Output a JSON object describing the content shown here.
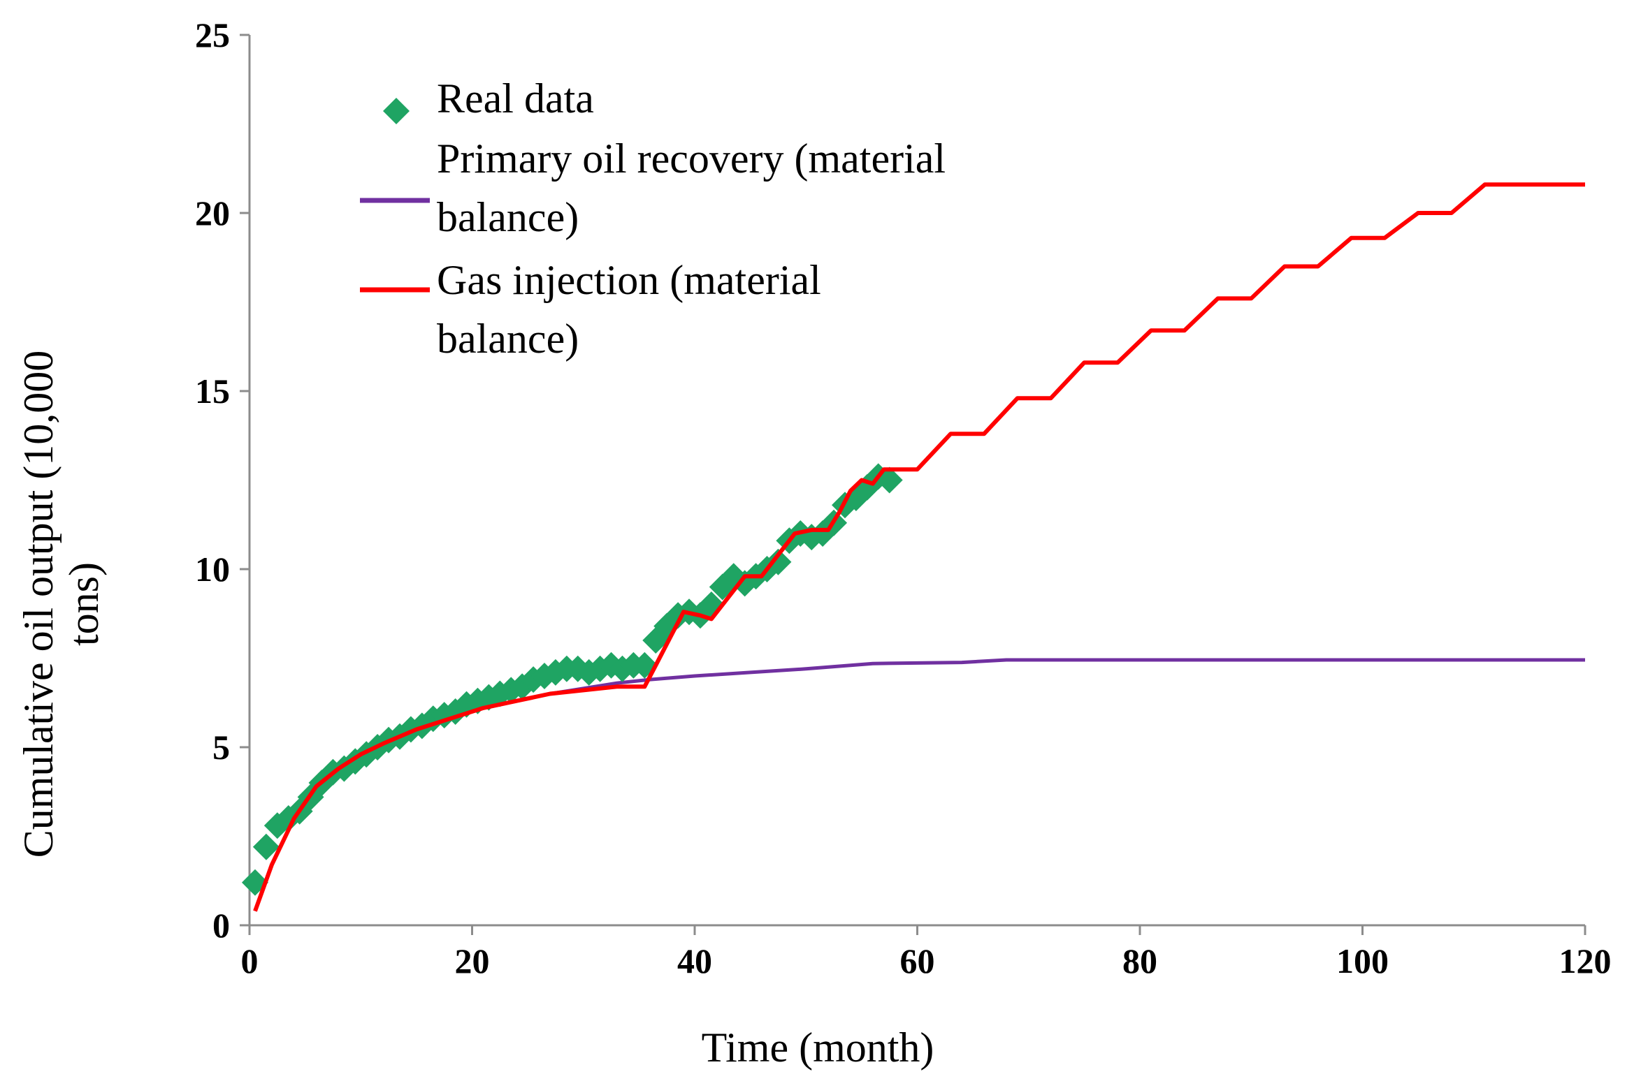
{
  "chart_data": {
    "type": "line",
    "title": "",
    "xlabel": "Time (month)",
    "ylabel_lines": [
      "Cumulative oil output (10,000",
      "tons)"
    ],
    "xlim": [
      0,
      120
    ],
    "ylim": [
      0,
      25
    ],
    "xticks": [
      0,
      20,
      40,
      60,
      80,
      100,
      120
    ],
    "yticks": [
      0,
      5,
      10,
      15,
      20,
      25
    ],
    "grid": false,
    "legend_position": "top-left",
    "colors": {
      "real": "#1fa463",
      "primary": "#7030a0",
      "gas": "#ff0000",
      "axis": "#8c8c8c"
    },
    "series": [
      {
        "name": "Real data",
        "legend_lines": [
          "Real data"
        ],
        "kind": "scatter",
        "marker": "diamond",
        "x": [
          0.5,
          1.5,
          2.5,
          3.5,
          4.5,
          5.5,
          6.5,
          7.5,
          8.5,
          9.5,
          10.5,
          11.5,
          12.5,
          13.5,
          14.5,
          15.5,
          16.5,
          17.5,
          18.5,
          19.5,
          20.5,
          21.5,
          22.5,
          23.5,
          24.5,
          25.5,
          26.5,
          27.5,
          28.5,
          29.5,
          30.5,
          31.5,
          32.5,
          33.5,
          34.5,
          35.5,
          36.5,
          37.5,
          38.5,
          39.5,
          40.5,
          41.5,
          42.5,
          43.5,
          44.5,
          45.5,
          46.5,
          47.5,
          48.5,
          49.5,
          50.5,
          51.5,
          52.5,
          53.5,
          54.5,
          55.5,
          56.5,
          57.5
        ],
        "y": [
          1.2,
          2.2,
          2.8,
          3.0,
          3.2,
          3.6,
          4.0,
          4.3,
          4.4,
          4.6,
          4.8,
          5.0,
          5.2,
          5.3,
          5.5,
          5.6,
          5.8,
          5.9,
          6.0,
          6.2,
          6.3,
          6.4,
          6.5,
          6.6,
          6.7,
          6.9,
          7.0,
          7.1,
          7.2,
          7.2,
          7.1,
          7.2,
          7.3,
          7.2,
          7.3,
          7.3,
          8.0,
          8.4,
          8.7,
          8.8,
          8.7,
          9.0,
          9.5,
          9.8,
          9.6,
          9.8,
          10.0,
          10.2,
          10.8,
          11.0,
          10.9,
          11.0,
          11.3,
          11.8,
          12.0,
          12.3,
          12.6,
          12.5
        ]
      },
      {
        "name": "Primary oil recovery (material balance)",
        "legend_lines": [
          "Primary oil recovery (material",
          "balance)"
        ],
        "kind": "line",
        "x": [
          0.5,
          2,
          4,
          6,
          8,
          10,
          12,
          15,
          18,
          21,
          24,
          27,
          30,
          33,
          36,
          40,
          45,
          50,
          56,
          64,
          68,
          80,
          100,
          120
        ],
        "y": [
          0.4,
          1.7,
          3.0,
          3.9,
          4.4,
          4.8,
          5.1,
          5.5,
          5.8,
          6.1,
          6.3,
          6.5,
          6.65,
          6.8,
          6.9,
          7.0,
          7.1,
          7.2,
          7.35,
          7.38,
          7.45,
          7.45,
          7.45,
          7.45
        ]
      },
      {
        "name": "Gas injection (material balance)",
        "legend_lines": [
          "Gas injection (material",
          "balance)"
        ],
        "kind": "line",
        "x": [
          0.5,
          2,
          4,
          6,
          8,
          10,
          12,
          15,
          18,
          21,
          24,
          27,
          30,
          33,
          35.5,
          36.5,
          38,
          39,
          40.5,
          41.5,
          43,
          44.5,
          46,
          47.5,
          49,
          50.5,
          52,
          53,
          54,
          55,
          56,
          57,
          60,
          63,
          66,
          69,
          72,
          75,
          78,
          81,
          84,
          87,
          90,
          93,
          96,
          99,
          102,
          105,
          108,
          111,
          114,
          117,
          120
        ],
        "y": [
          0.4,
          1.7,
          3.0,
          3.9,
          4.4,
          4.8,
          5.1,
          5.5,
          5.8,
          6.1,
          6.3,
          6.5,
          6.6,
          6.7,
          6.7,
          7.3,
          8.2,
          8.8,
          8.7,
          8.6,
          9.2,
          9.8,
          9.8,
          10.4,
          11.0,
          11.1,
          11.1,
          11.6,
          12.2,
          12.5,
          12.4,
          12.8,
          12.8,
          13.8,
          13.8,
          14.8,
          14.8,
          15.8,
          15.8,
          16.7,
          16.7,
          17.6,
          17.6,
          18.5,
          18.5,
          19.3,
          19.3,
          20.0,
          20.0,
          20.8,
          20.8,
          20.8,
          20.8
        ]
      }
    ]
  }
}
